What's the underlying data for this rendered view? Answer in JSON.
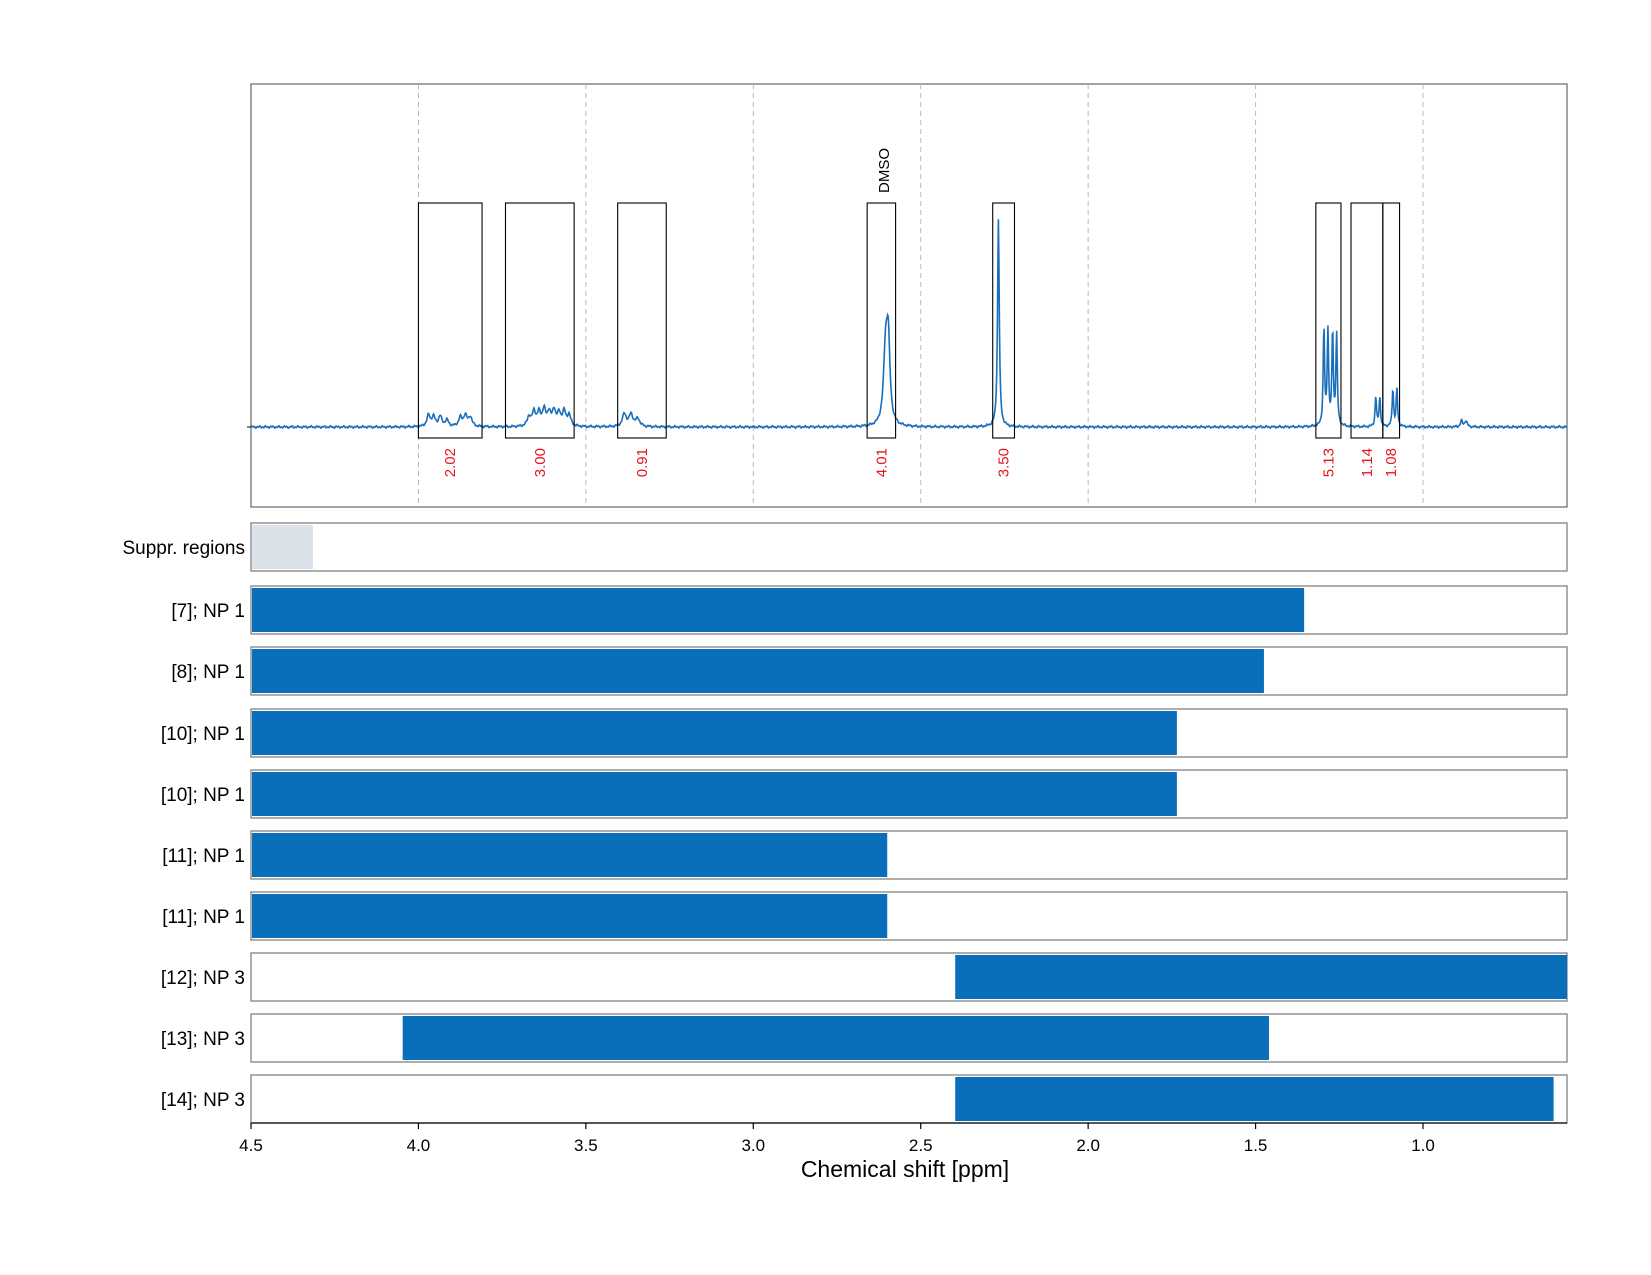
{
  "chart_data": {
    "type": "area",
    "xlabel": "Chemical shift [ppm]",
    "xlim": [
      4.5,
      0.57
    ],
    "x_reversed": true,
    "x_ticks": [
      4.5,
      4.0,
      3.5,
      3.0,
      2.5,
      2.0,
      1.5,
      1.0
    ],
    "x_tick_labels": [
      "4.5",
      "4.0",
      "3.5",
      "3.0",
      "2.5",
      "2.0",
      "1.5",
      "1.0"
    ],
    "grid": "vertical dashed",
    "colors": {
      "spectrum": "#1a6fbd",
      "bar": "#0a6fba",
      "suppressed": "#dbe1e8",
      "integral_text": "#e8141c"
    },
    "spectrum": {
      "baseline": 0,
      "peaks": [
        {
          "ppm": 3.97,
          "height": 0.035,
          "width": 0.006
        },
        {
          "ppm": 3.955,
          "height": 0.03,
          "width": 0.006
        },
        {
          "ppm": 3.935,
          "height": 0.032,
          "width": 0.006
        },
        {
          "ppm": 3.915,
          "height": 0.02,
          "width": 0.006
        },
        {
          "ppm": 3.875,
          "height": 0.028,
          "width": 0.006
        },
        {
          "ppm": 3.86,
          "height": 0.035,
          "width": 0.006
        },
        {
          "ppm": 3.845,
          "height": 0.03,
          "width": 0.006
        },
        {
          "ppm": 3.67,
          "height": 0.03,
          "width": 0.006
        },
        {
          "ppm": 3.655,
          "height": 0.045,
          "width": 0.006
        },
        {
          "ppm": 3.64,
          "height": 0.04,
          "width": 0.006
        },
        {
          "ppm": 3.625,
          "height": 0.05,
          "width": 0.006
        },
        {
          "ppm": 3.61,
          "height": 0.042,
          "width": 0.006
        },
        {
          "ppm": 3.595,
          "height": 0.048,
          "width": 0.006
        },
        {
          "ppm": 3.58,
          "height": 0.038,
          "width": 0.006
        },
        {
          "ppm": 3.565,
          "height": 0.045,
          "width": 0.006
        },
        {
          "ppm": 3.55,
          "height": 0.035,
          "width": 0.006
        },
        {
          "ppm": 3.385,
          "height": 0.04,
          "width": 0.007
        },
        {
          "ppm": 3.365,
          "height": 0.038,
          "width": 0.007
        },
        {
          "ppm": 3.345,
          "height": 0.025,
          "width": 0.007
        },
        {
          "ppm": 2.605,
          "height": 0.23,
          "width": 0.007
        },
        {
          "ppm": 2.597,
          "height": 0.25,
          "width": 0.006
        },
        {
          "ppm": 2.268,
          "height": 0.66,
          "width": 0.003
        },
        {
          "ppm": 1.296,
          "height": 0.31,
          "width": 0.0025
        },
        {
          "ppm": 1.284,
          "height": 0.3,
          "width": 0.0025
        },
        {
          "ppm": 1.27,
          "height": 0.3,
          "width": 0.0025
        },
        {
          "ppm": 1.258,
          "height": 0.29,
          "width": 0.0025
        },
        {
          "ppm": 1.141,
          "height": 0.095,
          "width": 0.0025
        },
        {
          "ppm": 1.129,
          "height": 0.095,
          "width": 0.0025
        },
        {
          "ppm": 1.09,
          "height": 0.12,
          "width": 0.0025
        },
        {
          "ppm": 1.078,
          "height": 0.12,
          "width": 0.0025
        },
        {
          "ppm": 0.885,
          "height": 0.018,
          "width": 0.004
        },
        {
          "ppm": 0.872,
          "height": 0.02,
          "width": 0.004
        }
      ]
    },
    "integral_regions": [
      {
        "from": 4.0,
        "to": 3.81,
        "label": "2.02"
      },
      {
        "from": 3.74,
        "to": 3.535,
        "label": "3.00"
      },
      {
        "from": 3.405,
        "to": 3.26,
        "label": "0.91"
      },
      {
        "from": 2.66,
        "to": 2.575,
        "label": "4.01"
      },
      {
        "from": 2.285,
        "to": 2.22,
        "label": "3.50"
      },
      {
        "from": 1.32,
        "to": 1.245,
        "label": "5.13"
      },
      {
        "from": 1.215,
        "to": 1.12,
        "label": "1.14"
      },
      {
        "from": 1.12,
        "to": 1.07,
        "label": "1.08"
      }
    ],
    "annotations": [
      {
        "ppm": 2.61,
        "text": "DMSO"
      }
    ],
    "rows": [
      {
        "label": "Suppr. regions",
        "from": 4.5,
        "to": 4.315,
        "kind": "suppressed"
      },
      {
        "label": "[7]; NP 1",
        "from": 4.5,
        "to": 1.355,
        "kind": "bar"
      },
      {
        "label": "[8]; NP 1",
        "from": 4.5,
        "to": 1.475,
        "kind": "bar"
      },
      {
        "label": "[10]; NP 1",
        "from": 4.5,
        "to": 1.735,
        "kind": "bar"
      },
      {
        "label": "[10]; NP 1",
        "from": 4.5,
        "to": 1.735,
        "kind": "bar"
      },
      {
        "label": "[11]; NP 1",
        "from": 4.5,
        "to": 2.6,
        "kind": "bar"
      },
      {
        "label": "[11]; NP 1",
        "from": 4.5,
        "to": 2.6,
        "kind": "bar"
      },
      {
        "label": "[12]; NP 3",
        "from": 2.4,
        "to": 0.57,
        "kind": "bar"
      },
      {
        "label": "[13]; NP 3",
        "from": 4.05,
        "to": 1.46,
        "kind": "bar"
      },
      {
        "label": "[14]; NP 3",
        "from": 2.4,
        "to": 0.61,
        "kind": "bar"
      }
    ]
  }
}
